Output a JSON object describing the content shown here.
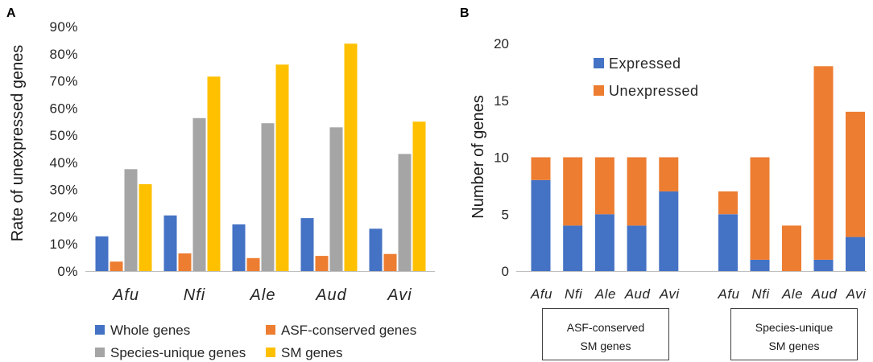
{
  "chart_data": [
    {
      "panel_label": "A",
      "type": "bar",
      "ylabel": "Rate of unexpressed genes",
      "ylim": [
        0,
        90
      ],
      "yticks": [
        0,
        10,
        20,
        30,
        40,
        50,
        60,
        70,
        80,
        90
      ],
      "ytick_labels": [
        "0%",
        "10%",
        "20%",
        "30%",
        "40%",
        "50%",
        "60%",
        "70%",
        "80%",
        "90%"
      ],
      "categories": [
        "Afu",
        "Nfi",
        "Ale",
        "Aud",
        "Avi"
      ],
      "series": [
        {
          "name": "Whole genes",
          "color": "#4472C4",
          "values": [
            12.8,
            20.5,
            17.2,
            19.5,
            15.6
          ]
        },
        {
          "name": "ASF-conserved genes",
          "color": "#ED7D31",
          "values": [
            3.5,
            6.5,
            4.8,
            5.6,
            6.3
          ]
        },
        {
          "name": "Species-unique genes",
          "color": "#A5A5A5",
          "values": [
            37.5,
            56.3,
            54.4,
            52.9,
            43.1
          ]
        },
        {
          "name": "SM genes",
          "color": "#FFC000",
          "values": [
            32.0,
            71.6,
            76.0,
            83.7,
            55.0
          ]
        }
      ],
      "legend_position": "bottom",
      "grid": false
    },
    {
      "panel_label": "B",
      "type": "bar",
      "stacked": true,
      "ylabel": "Number of genes",
      "ylim": [
        0,
        20
      ],
      "yticks": [
        0,
        5,
        10,
        15,
        20
      ],
      "ytick_labels": [
        "0",
        "5",
        "10",
        "15",
        "20"
      ],
      "series": [
        {
          "name": "Expressed",
          "color": "#4472C4"
        },
        {
          "name": "Unexpressed",
          "color": "#ED7D31"
        }
      ],
      "groups": [
        {
          "label_lines": [
            "ASF-conserved",
            "SM genes"
          ],
          "categories": [
            "Afu",
            "Nfi",
            "Ale",
            "Aud",
            "Avi"
          ],
          "values_by_series": [
            [
              8,
              4,
              5,
              4,
              7
            ],
            [
              2,
              6,
              5,
              6,
              3
            ]
          ]
        },
        {
          "label_lines": [
            "Species-unique",
            "SM genes"
          ],
          "categories": [
            "Afu",
            "Nfi",
            "Ale",
            "Aud",
            "Avi"
          ],
          "values_by_series": [
            [
              5,
              1,
              0,
              1,
              3
            ],
            [
              2,
              9,
              4,
              17,
              11
            ]
          ]
        }
      ],
      "legend_position": "top-left",
      "grid": false
    }
  ]
}
